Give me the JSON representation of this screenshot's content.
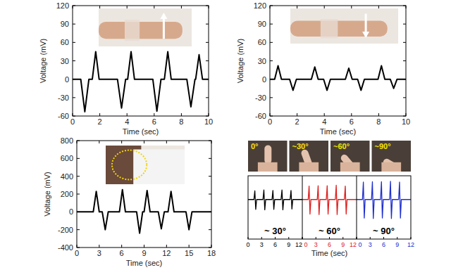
{
  "chart_data": [
    {
      "type": "line",
      "x_label": "Time (sec)",
      "y_label": "Voltage (mV)",
      "xlim": [
        0,
        10
      ],
      "ylim": [
        -60,
        120
      ],
      "xticks": [
        0,
        2,
        4,
        6,
        8,
        10
      ],
      "yticks": [
        -60,
        -30,
        0,
        30,
        60,
        90,
        120
      ],
      "x": [
        0,
        0.6,
        0.9,
        1.2,
        1.45,
        1.7,
        1.95,
        3.3,
        3.6,
        3.9,
        4.05,
        4.3,
        4.55,
        5.9,
        6.2,
        6.5,
        6.75,
        7.0,
        7.25,
        8.4,
        8.7,
        9.0,
        9.05,
        9.3,
        9.55,
        10
      ],
      "series": [
        {
          "color": "#000000",
          "values": [
            0,
            0,
            -53,
            0,
            0,
            45,
            0,
            0,
            -47,
            0,
            0,
            45,
            0,
            0,
            -52,
            0,
            0,
            45,
            0,
            0,
            -45,
            0,
            0,
            40,
            0,
            0
          ]
        }
      ]
    },
    {
      "type": "line",
      "x_label": "Time (sec)",
      "y_label": "Voltage (mV)",
      "xlim": [
        0,
        10
      ],
      "ylim": [
        -60,
        120
      ],
      "xticks": [
        0,
        2,
        4,
        6,
        8,
        10
      ],
      "yticks": [
        -60,
        -30,
        0,
        30,
        60,
        90,
        120
      ],
      "x": [
        0,
        0.35,
        0.6,
        0.85,
        1.45,
        1.7,
        1.95,
        3.05,
        3.3,
        3.55,
        3.95,
        4.2,
        4.45,
        5.55,
        5.8,
        6.05,
        6.45,
        6.7,
        6.95,
        7.95,
        8.2,
        8.45,
        8.85,
        9.1,
        9.35,
        10
      ],
      "series": [
        {
          "color": "#000000",
          "values": [
            0,
            0,
            22,
            0,
            0,
            -18,
            0,
            0,
            20,
            0,
            0,
            -18,
            0,
            0,
            18,
            0,
            0,
            -18,
            0,
            0,
            22,
            0,
            0,
            -15,
            0,
            0
          ]
        }
      ]
    },
    {
      "type": "line",
      "x_label": "Time (sec)",
      "y_label": "Voltage (mV)",
      "xlim": [
        0,
        18
      ],
      "ylim": [
        -400,
        800
      ],
      "xticks": [
        0,
        3,
        6,
        9,
        12,
        15,
        18
      ],
      "yticks": [
        -400,
        -200,
        0,
        200,
        400,
        600,
        800
      ],
      "x": [
        0,
        2.2,
        2.6,
        3.0,
        3.4,
        3.8,
        4.2,
        5.7,
        6.1,
        6.5,
        8.0,
        8.4,
        8.8,
        9.0,
        9.4,
        9.8,
        10.9,
        11.3,
        11.7,
        12.2,
        12.6,
        13.0,
        14.6,
        15.0,
        15.4,
        18
      ],
      "series": [
        {
          "color": "#000000",
          "values": [
            0,
            0,
            230,
            0,
            0,
            -200,
            0,
            0,
            250,
            0,
            0,
            -240,
            0,
            0,
            240,
            0,
            0,
            -190,
            0,
            0,
            230,
            0,
            0,
            -200,
            0,
            0
          ]
        }
      ]
    },
    {
      "type": "line",
      "x_label": "Time (sec)",
      "tick_labels": "x",
      "xlim": [
        0,
        12
      ],
      "ylim": [
        -100,
        60
      ],
      "xticks": [
        0,
        3,
        6,
        9,
        12
      ],
      "annotations": [
        "0°",
        "~30°",
        "~60°",
        "~90°"
      ],
      "x": [
        0,
        1.3,
        1.5,
        1.7,
        1.9,
        3.3,
        3.5,
        3.7,
        3.9,
        5.3,
        5.5,
        5.7,
        5.9,
        7.3,
        7.5,
        7.7,
        7.9,
        9.3,
        9.5,
        9.7,
        9.9,
        12
      ],
      "series": [
        {
          "name": "~ 30°",
          "color": "#000000",
          "values": [
            0,
            0,
            22,
            -25,
            0,
            0,
            24,
            -26,
            0,
            0,
            23,
            -25,
            0,
            0,
            24,
            -26,
            0,
            0,
            23,
            -24,
            0,
            0
          ]
        },
        {
          "name": "~ 60°",
          "color": "#e02020",
          "values": [
            0,
            0,
            34,
            -37,
            0,
            0,
            35,
            -38,
            0,
            0,
            35,
            -37,
            0,
            0,
            36,
            -38,
            0,
            0,
            34,
            -37,
            0,
            0
          ]
        },
        {
          "name": "~ 90°",
          "color": "#2030d0",
          "values": [
            0,
            0,
            44,
            -47,
            0,
            0,
            45,
            -48,
            0,
            0,
            45,
            -47,
            0,
            0,
            46,
            -48,
            0,
            0,
            44,
            -47,
            0,
            0
          ]
        }
      ]
    }
  ]
}
